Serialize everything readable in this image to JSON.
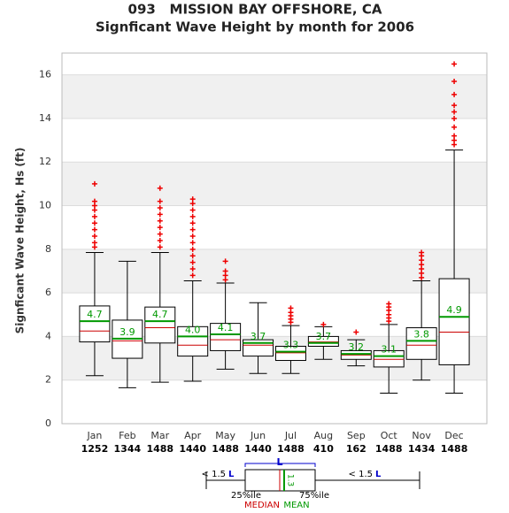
{
  "chart_data": {
    "type": "box",
    "title": "093   MISSION BAY OFFSHORE, CA",
    "subtitle": "Signficant Wave Height by month for 2006",
    "y_label": "Signficant Wave Height, Hs (ft)",
    "categories": [
      "Jan",
      "Feb",
      "Mar",
      "Apr",
      "May",
      "Jun",
      "Jul",
      "Aug",
      "Sep",
      "Oct",
      "Nov",
      "Dec"
    ],
    "counts": [
      1252,
      1344,
      1488,
      1440,
      1488,
      1440,
      1488,
      410,
      162,
      1488,
      1434,
      1488
    ],
    "boxes": [
      {
        "whislo": 2.2,
        "q1": 3.75,
        "med": 4.25,
        "mean": 4.7,
        "mean_label": "4.7",
        "q3": 5.4,
        "whishi": 7.85,
        "fliers": [
          8.1,
          8.3,
          8.6,
          8.9,
          9.2,
          9.5,
          9.8,
          10.0,
          10.2,
          11.0
        ]
      },
      {
        "whislo": 1.65,
        "q1": 3.0,
        "med": 3.8,
        "mean": 3.9,
        "mean_label": "3.9",
        "q3": 4.75,
        "whishi": 7.45,
        "fliers": []
      },
      {
        "whislo": 1.9,
        "q1": 3.7,
        "med": 4.4,
        "mean": 4.7,
        "mean_label": "4.7",
        "q3": 5.35,
        "whishi": 7.85,
        "fliers": [
          8.1,
          8.4,
          8.7,
          9.0,
          9.3,
          9.6,
          9.9,
          10.2,
          10.8
        ]
      },
      {
        "whislo": 1.95,
        "q1": 3.1,
        "med": 3.6,
        "mean": 4.0,
        "mean_label": "4.0",
        "q3": 4.45,
        "whishi": 6.55,
        "fliers": [
          6.8,
          7.1,
          7.4,
          7.7,
          8.0,
          8.3,
          8.6,
          8.9,
          9.2,
          9.5,
          9.8,
          10.1,
          10.3
        ]
      },
      {
        "whislo": 2.5,
        "q1": 3.35,
        "med": 3.85,
        "mean": 4.1,
        "mean_label": "4.1",
        "q3": 4.6,
        "whishi": 6.45,
        "fliers": [
          6.6,
          6.8,
          7.0,
          7.45
        ]
      },
      {
        "whislo": 2.3,
        "q1": 3.1,
        "med": 3.6,
        "mean": 3.7,
        "mean_label": "3.7",
        "q3": 3.85,
        "whishi": 5.55,
        "fliers": []
      },
      {
        "whislo": 2.3,
        "q1": 2.9,
        "med": 3.25,
        "mean": 3.3,
        "mean_label": "3.3",
        "q3": 3.55,
        "whishi": 4.5,
        "fliers": [
          4.65,
          4.8,
          4.95,
          5.1,
          5.3
        ]
      },
      {
        "whislo": 2.95,
        "q1": 3.55,
        "med": 3.75,
        "mean": 3.7,
        "mean_label": "3.7",
        "q3": 4.0,
        "whishi": 4.45,
        "fliers": [
          4.55
        ]
      },
      {
        "whislo": 2.65,
        "q1": 2.95,
        "med": 3.15,
        "mean": 3.2,
        "mean_label": "3.2",
        "q3": 3.35,
        "whishi": 3.85,
        "fliers": [
          4.2
        ]
      },
      {
        "whislo": 1.4,
        "q1": 2.6,
        "med": 2.95,
        "mean": 3.1,
        "mean_label": "3.1",
        "q3": 3.35,
        "whishi": 4.55,
        "fliers": [
          4.7,
          4.85,
          5.0,
          5.2,
          5.35,
          5.5
        ]
      },
      {
        "whislo": 2.0,
        "q1": 2.95,
        "med": 3.6,
        "mean": 3.8,
        "mean_label": "3.8",
        "q3": 4.4,
        "whishi": 6.55,
        "fliers": [
          6.7,
          6.9,
          7.1,
          7.3,
          7.5,
          7.7,
          7.85
        ]
      },
      {
        "whislo": 1.4,
        "q1": 2.7,
        "med": 4.2,
        "mean": 4.9,
        "mean_label": "4.9",
        "q3": 6.65,
        "whishi": 12.55,
        "fliers": [
          12.8,
          13.0,
          13.2,
          13.6,
          14.0,
          14.3,
          14.6,
          15.1,
          15.7,
          16.5
        ]
      }
    ],
    "ylim": [
      0,
      17
    ],
    "yticks": [
      0,
      2,
      4,
      6,
      8,
      10,
      12,
      14,
      16
    ],
    "grid_bands": true,
    "box_color": "#000000",
    "median_color": "#cc0000",
    "mean_color": "#009900",
    "flier_color": "#ee0000",
    "key": {
      "range_label": "< 1.5",
      "iqr_symbol": "L",
      "q1_label": "25%ile",
      "q3_label": "75%ile",
      "median_label": "MEDIAN",
      "mean_label": "MEAN",
      "mean_value_label": "1.3"
    }
  }
}
